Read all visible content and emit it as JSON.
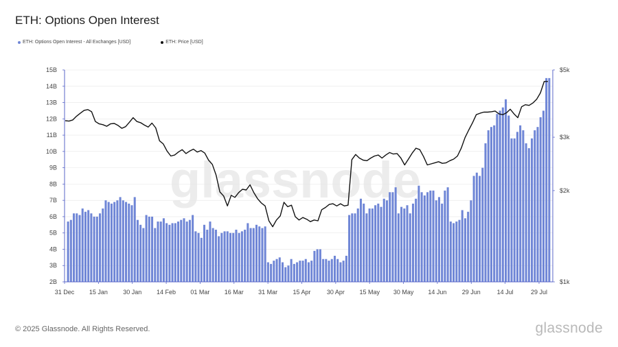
{
  "title": "ETH: Options Open Interest",
  "footer": {
    "copyright": "© 2025 Glassnode. All Rights Reserved.",
    "brand": "glassnode"
  },
  "watermark": "glassnode",
  "colors": {
    "bars": "#6f86d6",
    "price": "#111111",
    "axis": "#5865c9",
    "grid": "#e6e6e6"
  },
  "chart_data": {
    "type": "bar",
    "title": "ETH: Options Open Interest",
    "legend": [
      "ETH: Options Open Interest - All Exchanges [USD]",
      "ETH: Price [USD]"
    ],
    "legend_position": "top-left",
    "grid": true,
    "x_tick_labels": [
      "31 Dec",
      "15 Jan",
      "30 Jan",
      "14 Feb",
      "01 Mar",
      "16 Mar",
      "31 Mar",
      "15 Apr",
      "30 Apr",
      "15 May",
      "30 May",
      "14 Jun",
      "29 Jun",
      "14 Jul",
      "29 Jul"
    ],
    "y_left": {
      "ticks": [
        "2B",
        "3B",
        "4B",
        "5B",
        "6B",
        "7B",
        "8B",
        "9B",
        "10B",
        "11B",
        "12B",
        "13B",
        "14B",
        "15B"
      ],
      "ylim": [
        2,
        15
      ],
      "unit": "B USD"
    },
    "y_right": {
      "ticks": [
        "$1k",
        "$2k",
        "$3k",
        "$5k"
      ],
      "ylim": [
        1000,
        5000
      ],
      "scale": "log"
    },
    "series": [
      {
        "name": "ETH: Options Open Interest - All Exchanges [USD]",
        "type": "bar",
        "values": [
          5.7,
          5.8,
          6.2,
          6.2,
          6.1,
          6.5,
          6.3,
          6.4,
          6.2,
          6.0,
          6.0,
          6.2,
          6.5,
          7.0,
          6.9,
          6.8,
          6.9,
          7.0,
          7.2,
          7.0,
          6.9,
          6.8,
          6.7,
          7.2,
          5.8,
          5.5,
          5.3,
          6.1,
          6.0,
          6.0,
          5.3,
          5.7,
          5.7,
          5.9,
          5.6,
          5.5,
          5.6,
          5.6,
          5.7,
          5.8,
          5.9,
          5.7,
          5.8,
          6.1,
          5.1,
          5.0,
          4.7,
          5.5,
          5.2,
          5.7,
          5.3,
          5.2,
          4.8,
          5.0,
          5.1,
          5.1,
          5.0,
          5.0,
          5.2,
          5.0,
          5.1,
          5.2,
          5.6,
          5.3,
          5.3,
          5.5,
          5.4,
          5.3,
          5.4,
          3.2,
          3.1,
          3.3,
          3.4,
          3.5,
          3.2,
          2.9,
          3.0,
          3.4,
          3.1,
          3.2,
          3.3,
          3.3,
          3.4,
          3.2,
          3.3,
          3.9,
          4.0,
          4.0,
          3.4,
          3.4,
          3.3,
          3.4,
          3.6,
          3.4,
          3.2,
          3.3,
          3.6,
          6.1,
          6.2,
          6.2,
          6.5,
          7.1,
          6.8,
          6.2,
          6.5,
          6.5,
          6.7,
          6.8,
          6.6,
          7.1,
          7.0,
          7.5,
          7.5,
          7.8,
          6.2,
          6.6,
          6.5,
          6.7,
          6.2,
          6.8,
          7.1,
          7.9,
          7.5,
          7.3,
          7.5,
          7.6,
          7.6,
          7.0,
          7.2,
          6.8,
          7.6,
          7.8,
          5.7,
          5.6,
          5.7,
          5.8,
          6.4,
          5.9,
          6.3,
          7.0,
          8.5,
          8.7,
          8.5,
          9.0,
          10.5,
          11.3,
          11.5,
          11.6,
          12.3,
          12.5,
          12.7,
          13.2,
          12.2,
          10.8,
          10.8,
          11.2,
          11.6,
          11.3,
          10.5,
          10.2,
          10.8,
          11.3,
          11.5,
          12.1,
          12.5,
          14.5,
          14.5
        ]
      },
      {
        "name": "ETH: Price [USD]",
        "type": "line",
        "axis": "right",
        "values": [
          3400,
          3390,
          3420,
          3520,
          3600,
          3680,
          3700,
          3640,
          3380,
          3320,
          3300,
          3260,
          3320,
          3330,
          3280,
          3210,
          3250,
          3360,
          3480,
          3380,
          3350,
          3290,
          3240,
          3340,
          3220,
          2920,
          2850,
          2700,
          2600,
          2620,
          2680,
          2730,
          2650,
          2700,
          2740,
          2680,
          2710,
          2660,
          2520,
          2440,
          2250,
          1980,
          1920,
          1780,
          1930,
          1900,
          1970,
          2020,
          2010,
          2090,
          1970,
          1880,
          1820,
          1780,
          1590,
          1520,
          1600,
          1650,
          1830,
          1770,
          1790,
          1640,
          1600,
          1630,
          1610,
          1580,
          1600,
          1590,
          1730,
          1760,
          1800,
          1810,
          1780,
          1810,
          1780,
          1790,
          2530,
          2630,
          2560,
          2520,
          2510,
          2560,
          2600,
          2620,
          2560,
          2620,
          2670,
          2640,
          2650,
          2560,
          2430,
          2540,
          2660,
          2760,
          2730,
          2590,
          2430,
          2450,
          2470,
          2490,
          2460,
          2470,
          2510,
          2540,
          2600,
          2760,
          2990,
          3170,
          3350,
          3560,
          3600,
          3630,
          3630,
          3640,
          3660,
          3580,
          3560,
          3610,
          3710,
          3580,
          3480,
          3780,
          3840,
          3820,
          3890,
          4000,
          4200,
          4580,
          4580
        ]
      }
    ]
  }
}
